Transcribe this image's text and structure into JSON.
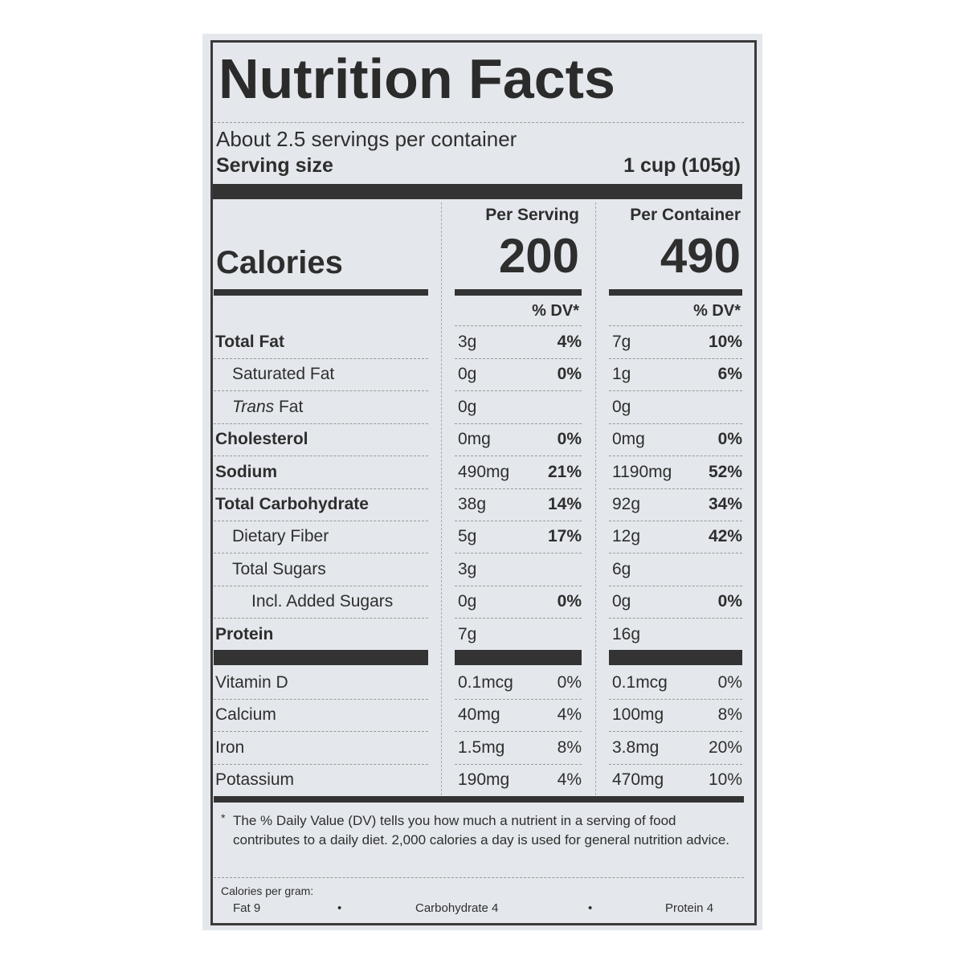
{
  "title": "Nutrition Facts",
  "servings_per_container": "About 2.5 servings per container",
  "serving_size": {
    "label": "Serving size",
    "value": "1 cup (105g)"
  },
  "columns": {
    "per_serving": "Per Serving",
    "per_container": "Per Container"
  },
  "calories": {
    "label": "Calories",
    "per_serving": "200",
    "per_container": "490"
  },
  "dv_header": "% DV*",
  "nutrients": [
    {
      "name": "Total Fat",
      "style": "bold",
      "serving": "3g",
      "serving_dv": "4%",
      "container": "7g",
      "container_dv": "10%"
    },
    {
      "name": "Saturated Fat",
      "style": "indent",
      "serving": "0g",
      "serving_dv": "0%",
      "container": "1g",
      "container_dv": "6%"
    },
    {
      "name_italic": "Trans",
      "name": " Fat",
      "style": "indent",
      "serving": "0g",
      "serving_dv": "",
      "container": "0g",
      "container_dv": ""
    },
    {
      "name": "Cholesterol",
      "style": "bold",
      "serving": "0mg",
      "serving_dv": "0%",
      "container": "0mg",
      "container_dv": "0%"
    },
    {
      "name": "Sodium",
      "style": "bold",
      "serving": "490mg",
      "serving_dv": "21%",
      "container": "1190mg",
      "container_dv": "52%"
    },
    {
      "name": "Total Carbohydrate",
      "style": "bold",
      "serving": "38g",
      "serving_dv": "14%",
      "container": "92g",
      "container_dv": "34%"
    },
    {
      "name": "Dietary Fiber",
      "style": "indent",
      "serving": "5g",
      "serving_dv": "17%",
      "container": "12g",
      "container_dv": "42%"
    },
    {
      "name": "Total Sugars",
      "style": "indent",
      "serving": "3g",
      "serving_dv": "",
      "container": "6g",
      "container_dv": ""
    },
    {
      "name": "Incl. Added Sugars",
      "style": "indent2",
      "serving": "0g",
      "serving_dv": "0%",
      "container": "0g",
      "container_dv": "0%"
    },
    {
      "name": "Protein",
      "style": "bold",
      "serving": "7g",
      "serving_dv": "",
      "container": "16g",
      "container_dv": ""
    }
  ],
  "vitamins": [
    {
      "name": "Vitamin D",
      "serving": "0.1mcg",
      "serving_dv": "0%",
      "container": "0.1mcg",
      "container_dv": "0%"
    },
    {
      "name": "Calcium",
      "serving": "40mg",
      "serving_dv": "4%",
      "container": "100mg",
      "container_dv": "8%"
    },
    {
      "name": "Iron",
      "serving": "1.5mg",
      "serving_dv": "8%",
      "container": "3.8mg",
      "container_dv": "20%"
    },
    {
      "name": "Potassium",
      "serving": "190mg",
      "serving_dv": "4%",
      "container": "470mg",
      "container_dv": "10%"
    }
  ],
  "footnote": {
    "marker": "*",
    "text": "The % Daily Value (DV) tells you how much a nutrient in a serving of food contributes to a daily diet. 2,000 calories a day is used for general nutrition advice."
  },
  "calories_per_gram": {
    "label": "Calories per gram:",
    "fat": "Fat 9",
    "carbohydrate": "Carbohydrate 4",
    "protein": "Protein 4",
    "separator": "•"
  }
}
